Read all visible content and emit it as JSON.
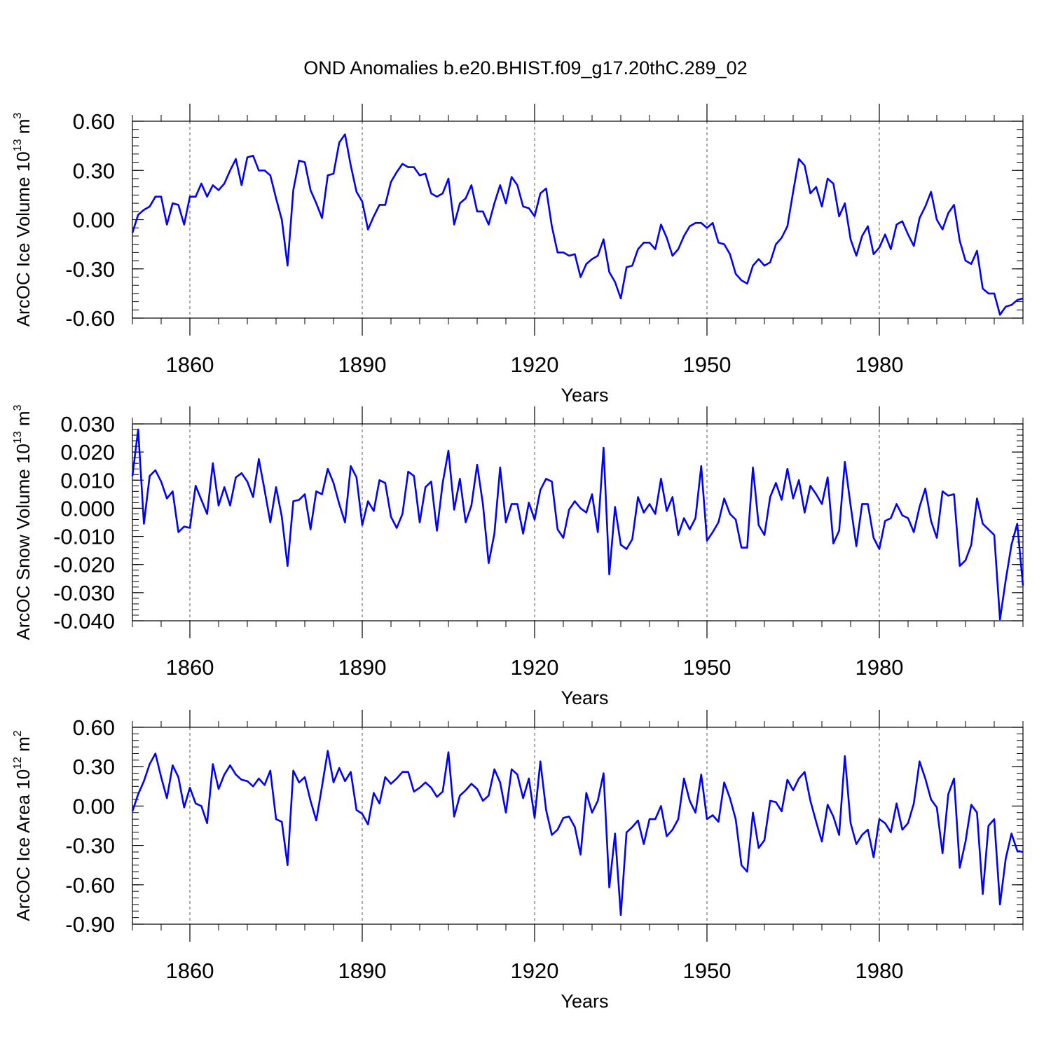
{
  "chart_data": [
    {
      "type": "line",
      "title": "OND Anomalies b.e20.BHIST.f09_g17.20thC.289_02",
      "ylabel": "ArcOC Ice Volume 10",
      "ylabel_exp": "13",
      "ylabel_unit": " m",
      "ylabel_unit_exp": "3",
      "xlabel": "Years",
      "x_start": 1850,
      "x_step": 1,
      "xlim": [
        1850,
        2005
      ],
      "ylim": [
        -0.6,
        0.6
      ],
      "yticks": [
        -0.6,
        -0.3,
        0.0,
        0.3,
        0.6
      ],
      "ytick_labels": [
        "-0.60",
        "-0.30",
        "0.00",
        "0.30",
        "0.60"
      ],
      "xticks": [
        1860,
        1890,
        1920,
        1950,
        1980
      ],
      "xtick_labels": [
        "1860",
        "1890",
        "1920",
        "1950",
        "1980"
      ],
      "series": [
        {
          "name": "ArcOC Ice Volume",
          "color": "#0000ff",
          "values": [
            -0.08,
            0.03,
            0.06,
            0.08,
            0.14,
            0.14,
            -0.03,
            0.1,
            0.09,
            -0.03,
            0.14,
            0.14,
            0.22,
            0.14,
            0.21,
            0.18,
            0.22,
            0.3,
            0.37,
            0.21,
            0.38,
            0.39,
            0.3,
            0.3,
            0.27,
            0.13,
            0.0,
            -0.28,
            0.18,
            0.36,
            0.35,
            0.18,
            0.1,
            0.01,
            0.27,
            0.28,
            0.47,
            0.52,
            0.33,
            0.17,
            0.11,
            -0.06,
            0.02,
            0.09,
            0.09,
            0.23,
            0.29,
            0.34,
            0.32,
            0.32,
            0.27,
            0.28,
            0.16,
            0.14,
            0.16,
            0.25,
            -0.03,
            0.1,
            0.13,
            0.21,
            0.05,
            0.05,
            -0.03,
            0.1,
            0.21,
            0.1,
            0.26,
            0.21,
            0.08,
            0.07,
            0.02,
            0.16,
            0.19,
            -0.04,
            -0.2,
            -0.2,
            -0.22,
            -0.21,
            -0.35,
            -0.27,
            -0.24,
            -0.22,
            -0.12,
            -0.32,
            -0.38,
            -0.48,
            -0.29,
            -0.28,
            -0.18,
            -0.14,
            -0.14,
            -0.18,
            -0.03,
            -0.11,
            -0.22,
            -0.18,
            -0.1,
            -0.04,
            -0.02,
            -0.02,
            -0.05,
            -0.02,
            -0.14,
            -0.15,
            -0.21,
            -0.33,
            -0.37,
            -0.39,
            -0.28,
            -0.24,
            -0.28,
            -0.26,
            -0.15,
            -0.11,
            -0.04,
            0.17,
            0.37,
            0.33,
            0.16,
            0.2,
            0.08,
            0.25,
            0.22,
            0.02,
            0.1,
            -0.12,
            -0.22,
            -0.1,
            -0.04,
            -0.21,
            -0.17,
            -0.09,
            -0.18,
            -0.03,
            -0.01,
            -0.09,
            -0.16,
            0.01,
            0.08,
            0.17,
            0.0,
            -0.06,
            0.04,
            0.09,
            -0.13,
            -0.25,
            -0.27,
            -0.19,
            -0.42,
            -0.45,
            -0.45,
            -0.58,
            -0.53,
            -0.52,
            -0.49,
            -0.48
          ]
        }
      ]
    },
    {
      "type": "line",
      "ylabel": "ArcOC Snow Volume 10",
      "ylabel_exp": "13",
      "ylabel_unit": " m",
      "ylabel_unit_exp": "3",
      "xlabel": "Years",
      "x_start": 1850,
      "x_step": 1,
      "xlim": [
        1850,
        2005
      ],
      "ylim": [
        -0.04,
        0.03
      ],
      "yticks": [
        -0.04,
        -0.03,
        -0.02,
        -0.01,
        0.0,
        0.01,
        0.02,
        0.03
      ],
      "ytick_labels": [
        "-0.040",
        "-0.030",
        "-0.020",
        "-0.010",
        "0.000",
        "0.010",
        "0.020",
        "0.030"
      ],
      "xticks": [
        1860,
        1890,
        1920,
        1950,
        1980
      ],
      "xtick_labels": [
        "1860",
        "1890",
        "1920",
        "1950",
        "1980"
      ],
      "series": [
        {
          "name": "ArcOC Snow Volume",
          "color": "#0000ff",
          "values": [
            0.0115,
            0.028,
            -0.0055,
            0.0115,
            0.0135,
            0.0095,
            0.0035,
            0.006,
            -0.0085,
            -0.0065,
            -0.007,
            0.008,
            0.003,
            -0.002,
            0.016,
            0.001,
            0.0075,
            0.001,
            0.011,
            0.0125,
            0.0095,
            0.004,
            0.0175,
            0.0065,
            -0.005,
            0.0075,
            -0.003,
            -0.0205,
            0.0025,
            0.003,
            0.005,
            -0.0075,
            0.006,
            0.005,
            0.014,
            0.009,
            0.0015,
            -0.005,
            0.015,
            0.011,
            -0.006,
            0.0025,
            -0.001,
            0.01,
            0.009,
            -0.003,
            -0.007,
            -0.002,
            0.013,
            0.0115,
            -0.005,
            0.0075,
            0.0095,
            -0.008,
            0.009,
            0.0205,
            -0.0005,
            0.0105,
            -0.005,
            0.001,
            0.0155,
            0.0015,
            -0.0195,
            -0.009,
            0.0145,
            -0.005,
            0.0015,
            0.0015,
            -0.009,
            0.002,
            -0.004,
            0.0065,
            0.0105,
            0.0095,
            -0.0075,
            -0.0105,
            -0.0005,
            0.0025,
            0.0,
            -0.0015,
            0.005,
            -0.0085,
            0.0215,
            -0.0235,
            0.0005,
            -0.013,
            -0.0145,
            -0.011,
            0.004,
            -0.0015,
            0.0015,
            -0.002,
            0.0105,
            -0.001,
            0.004,
            -0.0095,
            -0.0035,
            -0.0075,
            -0.0035,
            0.015,
            -0.0115,
            -0.0085,
            -0.005,
            0.0035,
            -0.002,
            -0.004,
            -0.014,
            -0.014,
            0.0145,
            -0.006,
            -0.0095,
            0.004,
            0.009,
            0.003,
            0.014,
            0.0035,
            0.01,
            -0.0015,
            0.008,
            0.005,
            0.0015,
            0.011,
            -0.0125,
            -0.008,
            0.0165,
            0.001,
            -0.0135,
            0.0015,
            0.0015,
            -0.0105,
            -0.0145,
            -0.0045,
            -0.0035,
            0.0015,
            -0.0025,
            -0.0035,
            -0.0085,
            0.0005,
            0.007,
            -0.0045,
            -0.0105,
            0.006,
            0.0045,
            0.005,
            -0.0205,
            -0.0185,
            -0.013,
            0.0035,
            -0.0055,
            -0.0075,
            -0.0095,
            -0.0395,
            -0.0255,
            -0.013,
            -0.0055,
            -0.0275
          ]
        }
      ]
    },
    {
      "type": "line",
      "ylabel": "ArcOC Ice Area 10",
      "ylabel_exp": "12",
      "ylabel_unit": " m",
      "ylabel_unit_exp": "2",
      "xlabel": "Years",
      "x_start": 1850,
      "x_step": 1,
      "xlim": [
        1850,
        2005
      ],
      "ylim": [
        -0.9,
        0.6
      ],
      "yticks": [
        -0.9,
        -0.6,
        -0.3,
        0.0,
        0.3,
        0.6
      ],
      "ytick_labels": [
        "-0.90",
        "-0.60",
        "-0.30",
        "0.00",
        "0.30",
        "0.60"
      ],
      "xticks": [
        1860,
        1890,
        1920,
        1950,
        1980
      ],
      "xtick_labels": [
        "1860",
        "1890",
        "1920",
        "1950",
        "1980"
      ],
      "series": [
        {
          "name": "ArcOC Ice Area",
          "color": "#0000ff",
          "values": [
            -0.04,
            0.09,
            0.19,
            0.32,
            0.4,
            0.22,
            0.06,
            0.31,
            0.22,
            -0.01,
            0.14,
            0.02,
            0.0,
            -0.13,
            0.32,
            0.13,
            0.24,
            0.31,
            0.24,
            0.2,
            0.19,
            0.15,
            0.21,
            0.16,
            0.27,
            -0.1,
            -0.12,
            -0.45,
            0.27,
            0.18,
            0.22,
            0.04,
            -0.11,
            0.15,
            0.42,
            0.18,
            0.29,
            0.19,
            0.26,
            -0.03,
            -0.06,
            -0.14,
            0.1,
            0.02,
            0.22,
            0.17,
            0.21,
            0.26,
            0.26,
            0.11,
            0.14,
            0.18,
            0.14,
            0.07,
            0.11,
            0.41,
            -0.08,
            0.08,
            0.12,
            0.17,
            0.13,
            0.04,
            0.08,
            0.28,
            0.18,
            -0.05,
            0.28,
            0.24,
            0.06,
            0.21,
            -0.09,
            0.34,
            -0.03,
            -0.22,
            -0.18,
            -0.09,
            -0.08,
            -0.16,
            -0.37,
            0.1,
            -0.05,
            0.04,
            0.25,
            -0.62,
            -0.21,
            -0.83,
            -0.2,
            -0.16,
            -0.11,
            -0.29,
            -0.1,
            -0.1,
            0.0,
            -0.23,
            -0.18,
            -0.1,
            0.21,
            0.04,
            -0.05,
            0.24,
            -0.1,
            -0.07,
            -0.12,
            0.18,
            0.06,
            -0.1,
            -0.45,
            -0.5,
            -0.05,
            -0.32,
            -0.26,
            0.04,
            0.03,
            -0.04,
            0.2,
            0.12,
            0.21,
            0.26,
            0.04,
            -0.12,
            -0.27,
            0.01,
            -0.08,
            -0.22,
            0.38,
            -0.13,
            -0.29,
            -0.22,
            -0.18,
            -0.39,
            -0.1,
            -0.13,
            -0.2,
            0.02,
            -0.18,
            -0.13,
            0.02,
            0.34,
            0.21,
            0.05,
            -0.01,
            -0.36,
            0.09,
            0.21,
            -0.47,
            -0.27,
            0.01,
            -0.05,
            -0.67,
            -0.15,
            -0.1,
            -0.75,
            -0.4,
            -0.21,
            -0.34,
            -0.35
          ]
        }
      ]
    }
  ]
}
